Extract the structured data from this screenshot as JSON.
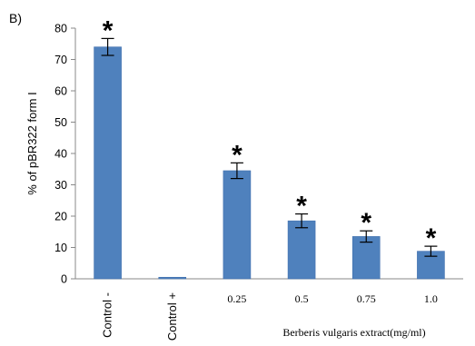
{
  "panel_label": "B)",
  "chart_data": {
    "type": "bar",
    "categories": [
      "Control -",
      "Control +",
      "0.25",
      "0.5",
      "0.75",
      "1.0"
    ],
    "values": [
      74,
      0.5,
      34.5,
      18.5,
      13.5,
      8.8
    ],
    "errors": [
      2.7,
      0,
      2.5,
      2.2,
      1.8,
      1.6
    ],
    "significance": [
      "*",
      "",
      "*",
      "*",
      "*",
      "*"
    ],
    "ylabel": "% of pBR322 form I",
    "xlabel": "Berberis vulgaris extract(mg/ml)",
    "ylim": [
      0,
      80
    ],
    "yticks": [
      0,
      10,
      20,
      30,
      40,
      50,
      60,
      70,
      80
    ],
    "grid": false,
    "bar_color": "#4f81bd",
    "bar_edge_color": "#3f6fae"
  }
}
